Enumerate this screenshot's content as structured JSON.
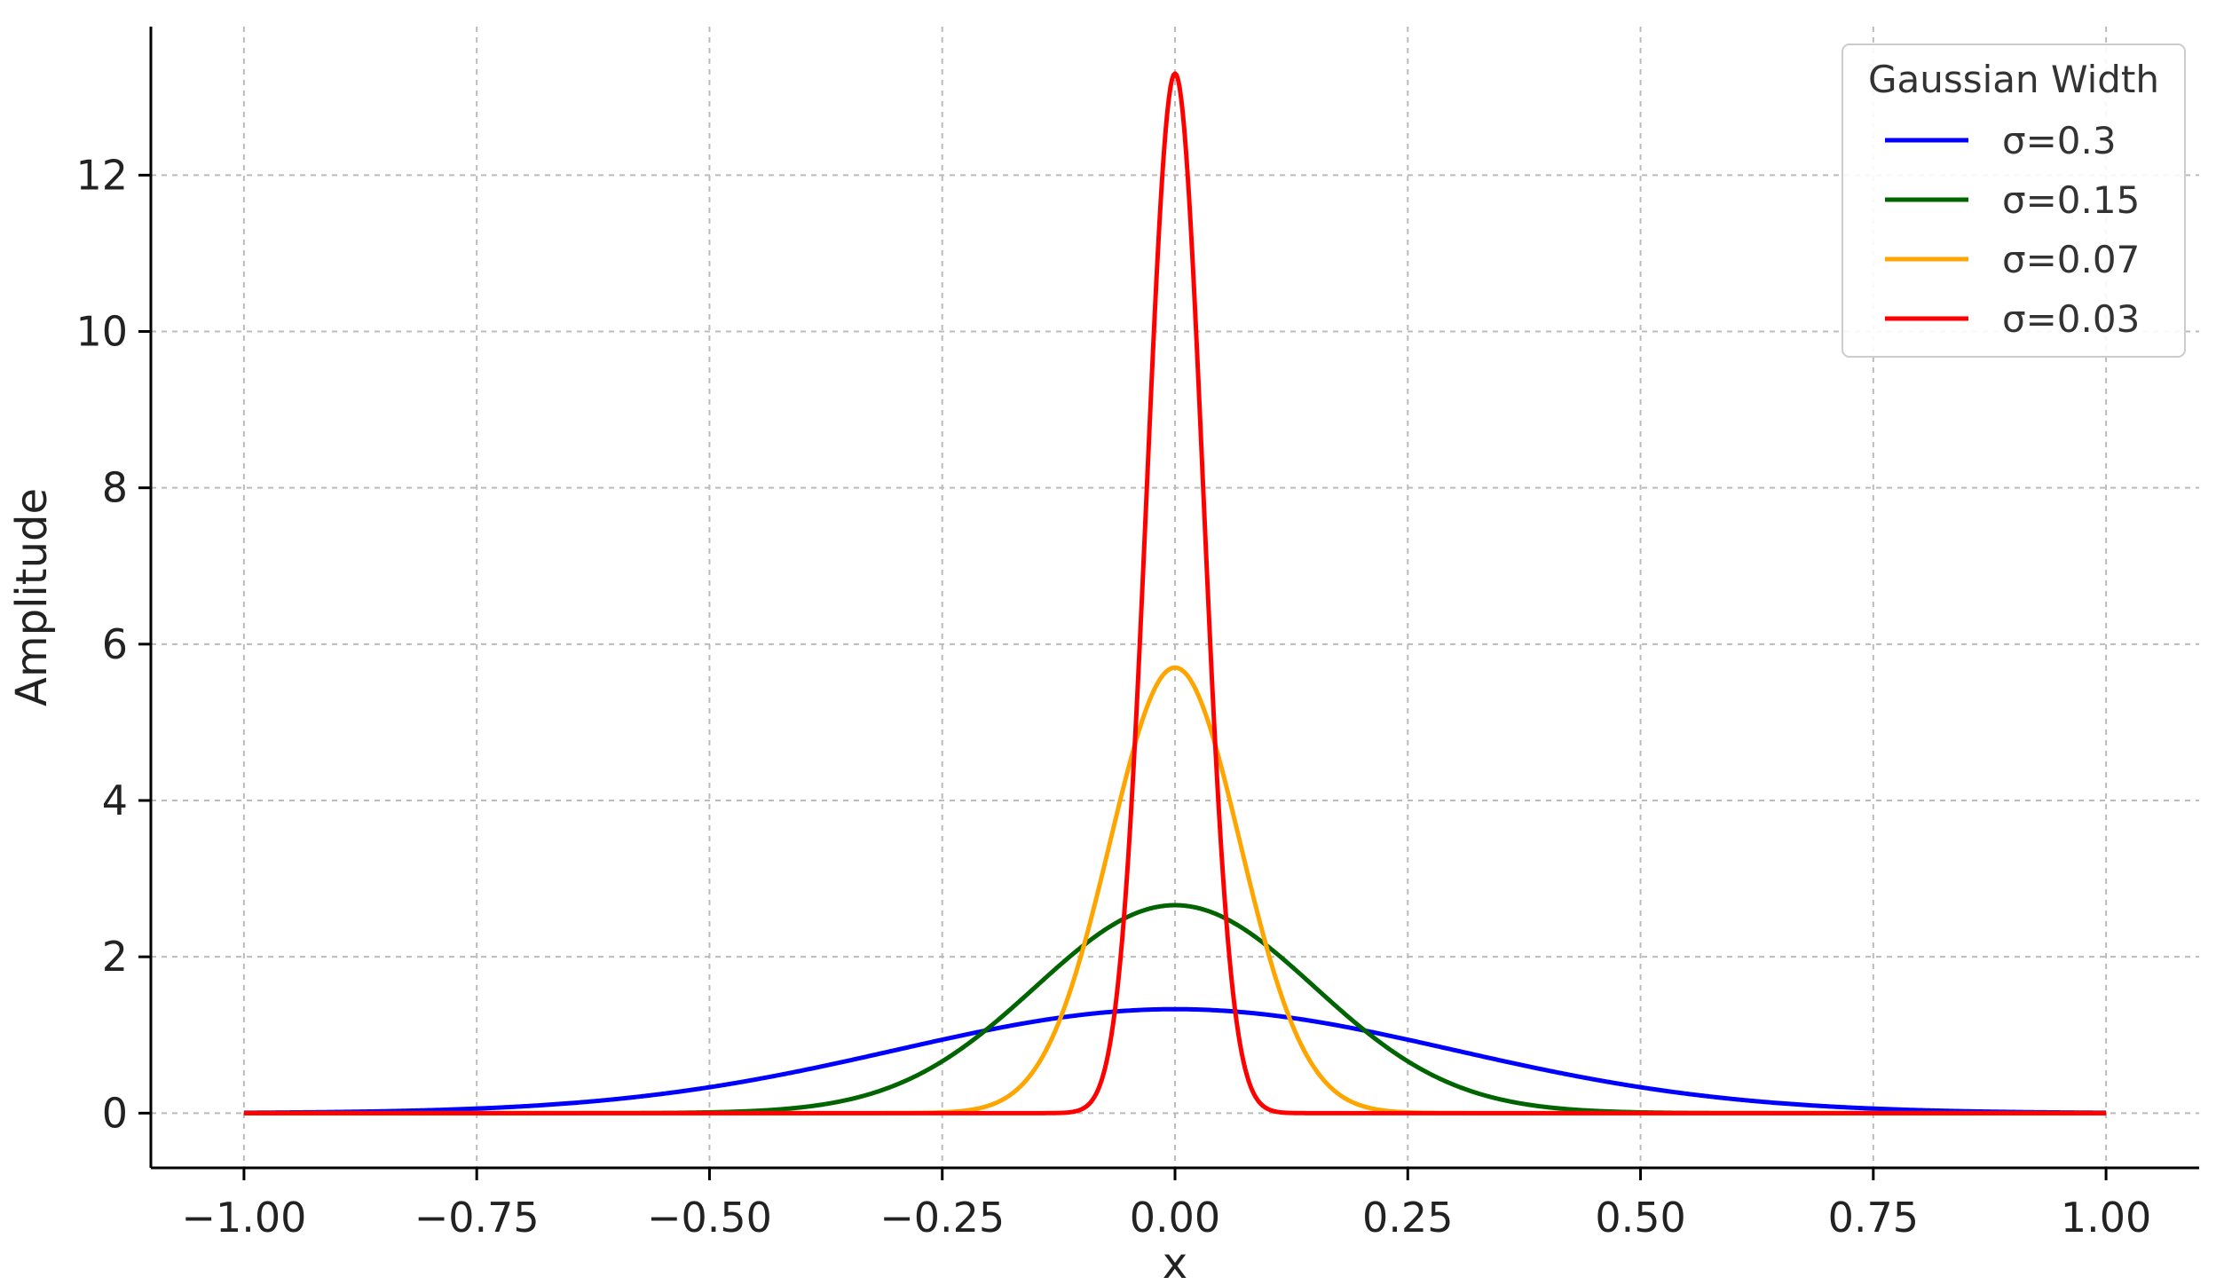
{
  "chart_data": {
    "type": "line",
    "title": "",
    "xlabel": "x",
    "ylabel": "Amplitude",
    "xlim": [
      -1.1,
      1.1
    ],
    "ylim": [
      -0.7,
      13.9
    ],
    "x_ticks": [
      -1.0,
      -0.75,
      -0.5,
      -0.25,
      0.0,
      0.25,
      0.5,
      0.75,
      1.0
    ],
    "x_tick_labels": [
      "−1.00",
      "−0.75",
      "−0.50",
      "−0.25",
      "0.00",
      "0.25",
      "0.50",
      "0.75",
      "1.00"
    ],
    "y_ticks": [
      0,
      2,
      4,
      6,
      8,
      10,
      12
    ],
    "y_tick_labels": [
      "0",
      "2",
      "4",
      "6",
      "8",
      "10",
      "12"
    ],
    "grid": true,
    "x_range": [
      -1.0,
      1.0
    ],
    "legend": {
      "title": "Gaussian Width",
      "placement": "top-right"
    },
    "series": [
      {
        "name": "σ=0.3",
        "sigma": 0.3,
        "peak": 1.33,
        "color": "#0000ff"
      },
      {
        "name": "σ=0.15",
        "sigma": 0.15,
        "peak": 2.66,
        "color": "#006400"
      },
      {
        "name": "σ=0.07",
        "sigma": 0.07,
        "peak": 5.7,
        "color": "#ffa500"
      },
      {
        "name": "σ=0.03",
        "sigma": 0.03,
        "peak": 13.3,
        "color": "#ff0000"
      }
    ]
  }
}
